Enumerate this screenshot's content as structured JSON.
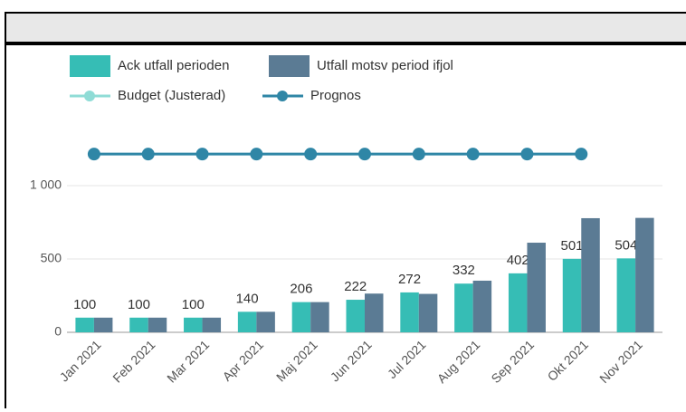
{
  "chart_data": {
    "type": "bar",
    "categories": [
      "Jan 2021",
      "Feb 2021",
      "Mar 2021",
      "Apr 2021",
      "Maj 2021",
      "Jun 2021",
      "Jul 2021",
      "Aug 2021",
      "Sep 2021",
      "Okt 2021",
      "Nov 2021"
    ],
    "series": [
      {
        "name": "Ack utfall perioden",
        "type": "bar",
        "color": "#36bdb5",
        "values": [
          100,
          100,
          100,
          140,
          206,
          222,
          272,
          332,
          402,
          501,
          504
        ],
        "data_labels": true
      },
      {
        "name": "Utfall motsv period ifjol",
        "type": "bar",
        "color": "#5b7b94",
        "values": [
          100,
          100,
          100,
          140,
          206,
          264,
          262,
          352,
          611,
          778,
          780
        ]
      },
      {
        "name": "Budget (Justerad)",
        "type": "line",
        "color": "#8fdcd6",
        "values": [
          null,
          null,
          null,
          null,
          null,
          null,
          null,
          null,
          null,
          null,
          null
        ]
      },
      {
        "name": "Prognos",
        "type": "line",
        "color": "#2f86a6",
        "values": [
          1215,
          1215,
          1215,
          1215,
          1215,
          1215,
          1215,
          1215,
          1215,
          1215,
          null
        ]
      }
    ],
    "ylim": [
      0,
      1250
    ],
    "yticks": [
      0,
      500,
      {
        "value": 1000,
        "label": "1 000"
      }
    ],
    "grid": true
  }
}
